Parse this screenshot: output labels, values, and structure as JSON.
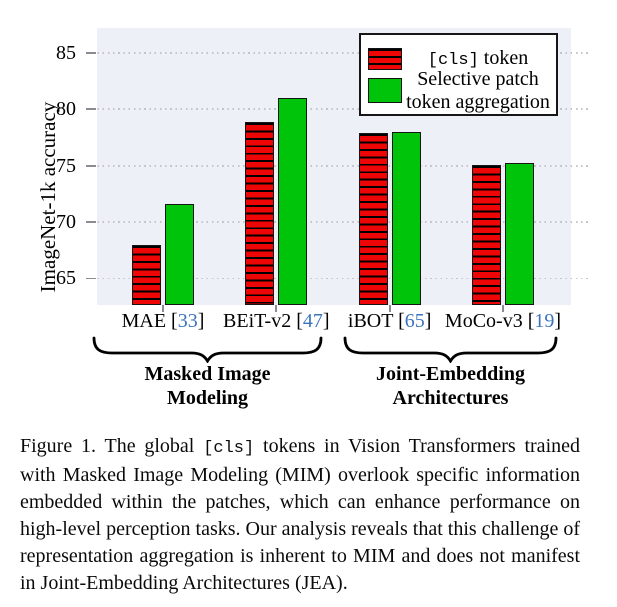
{
  "chart_data": {
    "type": "bar",
    "categories": [
      "MAE [33]",
      "BEiT-v2 [47]",
      "iBOT [65]",
      "MoCo-v3 [19]"
    ],
    "category_parts": [
      {
        "name": "MAE",
        "cite": "33"
      },
      {
        "name": "BEiT-v2",
        "cite": "47"
      },
      {
        "name": "iBOT",
        "cite": "65"
      },
      {
        "name": "MoCo-v3",
        "cite": "19"
      }
    ],
    "series": [
      {
        "name": "[cls] token",
        "color": "#ee0606",
        "hatch": "horizontal-lines",
        "values": [
          68.0,
          78.9,
          77.9,
          75.1
        ]
      },
      {
        "name": "Selective patch token aggregation",
        "color": "#00c40a",
        "hatch": "none",
        "values": [
          71.6,
          81.0,
          78.0,
          75.2
        ]
      }
    ],
    "title": "",
    "xlabel": "",
    "ylabel": "ImageNet-1k accuracy",
    "yticks": [
      85,
      80,
      75,
      70,
      65
    ],
    "ylim": [
      62.65,
      87.2
    ],
    "grid": "horizontal-dotted",
    "plot_bg": "#eef0f8",
    "legend_position": "upper-right",
    "groups": [
      {
        "label": "Masked Image Modeling",
        "span": [
          "MAE [33]",
          "BEiT-v2 [47]"
        ]
      },
      {
        "label": "Joint-Embedding Architectures",
        "span": [
          "iBOT [65]",
          "MoCo-v3 [19]"
        ]
      }
    ]
  },
  "x_axis": {
    "cite_open": " [",
    "cite_close": "]"
  },
  "legend": {
    "item1_mono": "[cls]",
    "item1_rest": " token",
    "item2_line1": "Selective patch",
    "item2_line2": "token aggregation"
  },
  "group_labels": [
    {
      "line1": "Masked Image",
      "line2": "Modeling"
    },
    {
      "line1": "Joint-Embedding",
      "line2": "Architectures"
    }
  ],
  "caption": {
    "before": "Figure 1. The global ",
    "cls": "[cls]",
    "after": " tokens in Vision Transformers trained with Masked Image Modeling (MIM) overlook specific information embedded within the patches, which can enhance performance on high-level perception tasks. Our analysis reveals that this challenge of representation aggregation is inherent to MIM and does not manifest in Joint-Embedding Architectures (JEA)."
  }
}
